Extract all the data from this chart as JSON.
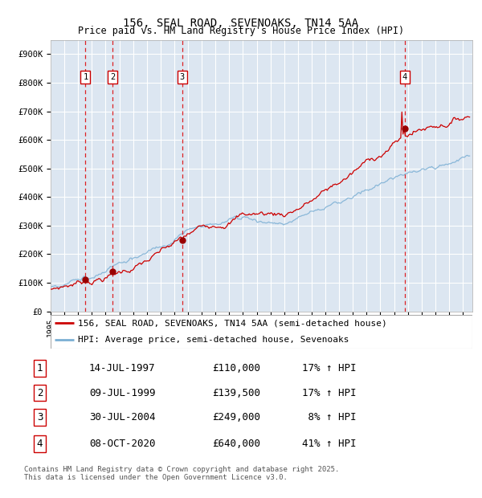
{
  "title": "156, SEAL ROAD, SEVENOAKS, TN14 5AA",
  "subtitle": "Price paid vs. HM Land Registry's House Price Index (HPI)",
  "bg_color": "#dce6f1",
  "grid_color": "#ffffff",
  "red_line_color": "#cc0000",
  "blue_line_color": "#7bafd4",
  "ylim": [
    0,
    950000
  ],
  "yticks": [
    0,
    100000,
    200000,
    300000,
    400000,
    500000,
    600000,
    700000,
    800000,
    900000
  ],
  "ytick_labels": [
    "£0",
    "£100K",
    "£200K",
    "£300K",
    "£400K",
    "£500K",
    "£600K",
    "£700K",
    "£800K",
    "£900K"
  ],
  "sale_dates_num": [
    1997.54,
    1999.52,
    2004.58,
    2020.77
  ],
  "sale_prices": [
    110000,
    139500,
    249000,
    640000
  ],
  "sale_labels": [
    "1",
    "2",
    "3",
    "4"
  ],
  "legend_red_label": "156, SEAL ROAD, SEVENOAKS, TN14 5AA (semi-detached house)",
  "legend_blue_label": "HPI: Average price, semi-detached house, Sevenoaks",
  "table_data": [
    [
      "1",
      "14-JUL-1997",
      "£110,000",
      "17% ↑ HPI"
    ],
    [
      "2",
      "09-JUL-1999",
      "£139,500",
      "17% ↑ HPI"
    ],
    [
      "3",
      "30-JUL-2004",
      "£249,000",
      " 8% ↑ HPI"
    ],
    [
      "4",
      "08-OCT-2020",
      "£640,000",
      "41% ↑ HPI"
    ]
  ],
  "footer": "Contains HM Land Registry data © Crown copyright and database right 2025.\nThis data is licensed under the Open Government Licence v3.0."
}
